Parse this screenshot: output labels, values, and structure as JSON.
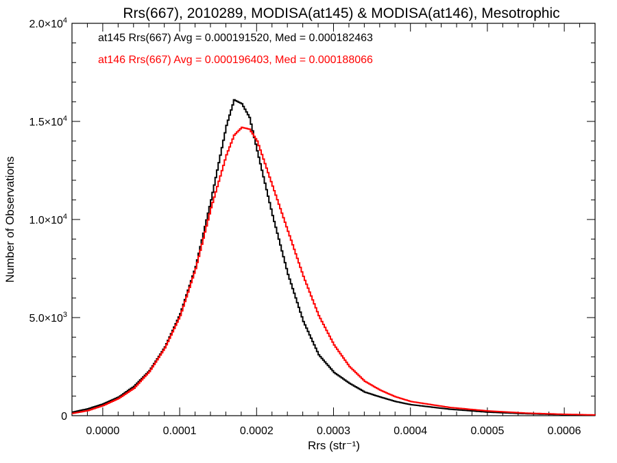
{
  "chart_data": {
    "type": "line",
    "title": "Rrs(667), 2010289, MODISA(at145) & MODISA(at146), Mesotrophic",
    "xlabel": "Rrs (str⁻¹)",
    "ylabel": "Number of Observations",
    "xlim": [
      -4e-05,
      0.00064
    ],
    "ylim": [
      0,
      20000
    ],
    "x_ticks": [
      {
        "value": 0.0,
        "label": "0.0000"
      },
      {
        "value": 0.0001,
        "label": "0.0001"
      },
      {
        "value": 0.0002,
        "label": "0.0002"
      },
      {
        "value": 0.0003,
        "label": "0.0003"
      },
      {
        "value": 0.0004,
        "label": "0.0004"
      },
      {
        "value": 0.0005,
        "label": "0.0005"
      },
      {
        "value": 0.0006,
        "label": "0.0006"
      }
    ],
    "y_ticks": [
      {
        "value": 0,
        "base": "0",
        "exp": ""
      },
      {
        "value": 5000,
        "base": "5.0×10",
        "exp": "3"
      },
      {
        "value": 10000,
        "base": "1.0×10",
        "exp": "4"
      },
      {
        "value": 15000,
        "base": "1.5×10",
        "exp": "4"
      },
      {
        "value": 20000,
        "base": "2.0×10",
        "exp": "4"
      }
    ],
    "grid": false,
    "legend_placement": "top-left",
    "x": [
      -4e-05,
      -2e-05,
      0.0,
      2e-05,
      4e-05,
      6e-05,
      8e-05,
      0.0001,
      0.00012,
      0.00014,
      0.00016,
      0.00017,
      0.00018,
      0.00019,
      0.0002,
      0.00022,
      0.00024,
      0.00026,
      0.00028,
      0.0003,
      0.00032,
      0.00034,
      0.00036,
      0.00038,
      0.0004,
      0.00045,
      0.0005,
      0.00055,
      0.0006,
      0.00064
    ],
    "series": [
      {
        "name": "at145",
        "color": "#000000",
        "values": [
          180,
          350,
          600,
          950,
          1500,
          2300,
          3500,
          5200,
          7600,
          11000,
          14800,
          16100,
          15900,
          15200,
          13500,
          10200,
          7200,
          4800,
          3100,
          2200,
          1650,
          1200,
          950,
          720,
          560,
          330,
          180,
          100,
          50,
          25
        ]
      },
      {
        "name": "at146",
        "color": "#ff0000",
        "values": [
          120,
          260,
          520,
          880,
          1400,
          2250,
          3450,
          5100,
          7500,
          10600,
          13300,
          14300,
          14700,
          14600,
          14000,
          11700,
          9400,
          7100,
          5100,
          3600,
          2500,
          1750,
          1300,
          960,
          720,
          420,
          240,
          130,
          70,
          35
        ]
      }
    ]
  },
  "legend": {
    "line1": "at145 Rrs(667) Avg = 0.000191520, Med = 0.000182463",
    "line2": "at146 Rrs(667) Avg = 0.000196403, Med = 0.000188066"
  }
}
